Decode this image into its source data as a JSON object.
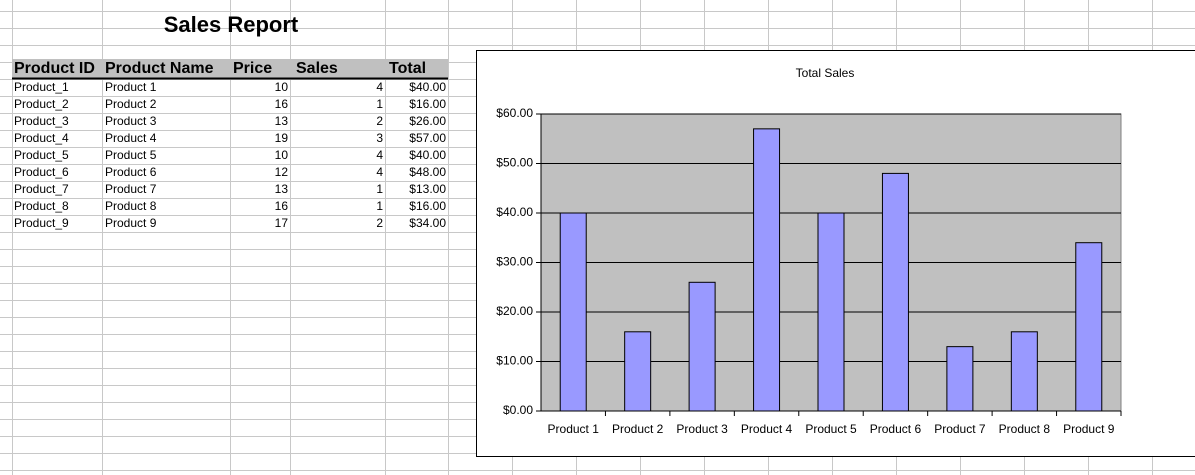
{
  "header": {
    "title": "Sales Report"
  },
  "table": {
    "columns": [
      "Product ID",
      "Product Name",
      "Price",
      "Sales",
      "Total"
    ],
    "rows": [
      [
        "Product_1",
        "Product 1",
        10,
        4,
        "$40.00"
      ],
      [
        "Product_2",
        "Product 2",
        16,
        1,
        "$16.00"
      ],
      [
        "Product_3",
        "Product 3",
        13,
        2,
        "$26.00"
      ],
      [
        "Product_4",
        "Product 4",
        19,
        3,
        "$57.00"
      ],
      [
        "Product_5",
        "Product 5",
        10,
        4,
        "$40.00"
      ],
      [
        "Product_6",
        "Product 6",
        12,
        4,
        "$48.00"
      ],
      [
        "Product_7",
        "Product 7",
        13,
        1,
        "$13.00"
      ],
      [
        "Product_8",
        "Product 8",
        16,
        1,
        "$16.00"
      ],
      [
        "Product_9",
        "Product 9",
        17,
        2,
        "$34.00"
      ]
    ]
  },
  "chart_data": {
    "type": "bar",
    "title": "Total Sales",
    "categories": [
      "Product 1",
      "Product 2",
      "Product 3",
      "Product 4",
      "Product 5",
      "Product 6",
      "Product 7",
      "Product 8",
      "Product 9"
    ],
    "values": [
      40,
      16,
      26,
      57,
      40,
      48,
      13,
      16,
      34
    ],
    "color": "#9999ff",
    "ylim": [
      0,
      60
    ],
    "yticks": [
      {
        "value": 0,
        "label": "$0.00"
      },
      {
        "value": 10,
        "label": "$10.00"
      },
      {
        "value": 20,
        "label": "$20.00"
      },
      {
        "value": 30,
        "label": "$30.00"
      },
      {
        "value": 40,
        "label": "$40.00"
      },
      {
        "value": 50,
        "label": "$50.00"
      },
      {
        "value": 60,
        "label": "$60.00"
      }
    ],
    "grid": true
  }
}
